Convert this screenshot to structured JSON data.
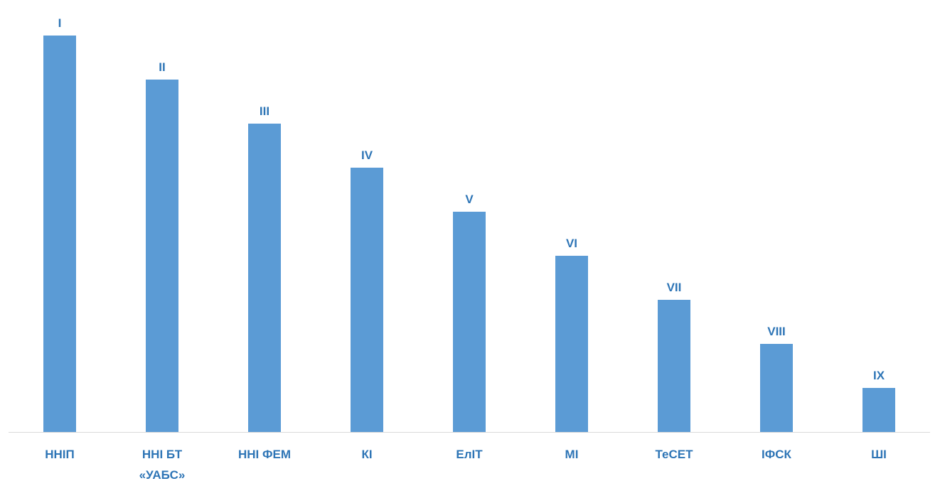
{
  "chart_data": {
    "type": "bar",
    "title": "",
    "xlabel": "",
    "ylabel": "",
    "categories": [
      [
        "ННІП"
      ],
      [
        "ННІ БТ",
        "«УАБС»"
      ],
      [
        "ННІ ФЕМ"
      ],
      [
        "КІ"
      ],
      [
        "ЕлІТ"
      ],
      [
        "МІ"
      ],
      [
        "ТеСЕТ"
      ],
      [
        "ІФСК"
      ],
      [
        "ШІ"
      ]
    ],
    "values": [
      9,
      8,
      7,
      6,
      5,
      4,
      3,
      2,
      1
    ],
    "data_labels": [
      "I",
      "II",
      "III",
      "IV",
      "V",
      "VI",
      "VII",
      "VIII",
      "IX"
    ],
    "ylim": [
      0,
      10
    ],
    "grid": false,
    "legend": "none",
    "colors": {
      "bar": "#5b9bd5",
      "label_text": "#2e75b6",
      "axis_line": "#d9d9d9"
    }
  }
}
